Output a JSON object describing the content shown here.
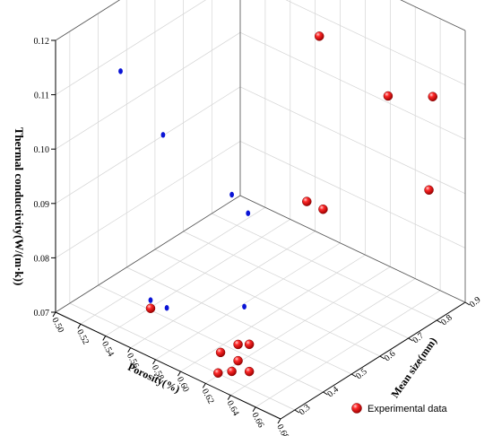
{
  "chart_data": {
    "type": "scatter",
    "projection": "3d",
    "xlabel": "Porosity(%)",
    "ylabel": "Mean size(mm)",
    "zlabel": "Thermal conductivity(W/(m·k))",
    "xlim": [
      0.5,
      0.68
    ],
    "ylim": [
      0.25,
      0.9
    ],
    "zlim": [
      0.07,
      0.12
    ],
    "x_ticks": [
      "0.50",
      "0.52",
      "0.54",
      "0.56",
      "0.58",
      "0.60",
      "0.62",
      "0.64",
      "0.66",
      "0.68"
    ],
    "y_ticks": [
      "0.3",
      "0.4",
      "0.5",
      "0.6",
      "0.7",
      "0.8",
      "0.9"
    ],
    "z_ticks": [
      "0.07",
      "0.08",
      "0.09",
      "0.10",
      "0.11",
      "0.12"
    ],
    "grid": true,
    "legend": {
      "position": "bottom-right",
      "entries": [
        "Experimental data"
      ]
    },
    "series": [
      {
        "name": "Experimental data",
        "color": "#e8000b",
        "points": [
          {
            "x": 0.552,
            "y": 0.8,
            "z": 0.12
          },
          {
            "x": 0.586,
            "y": 0.8,
            "z": 0.112
          },
          {
            "x": 0.641,
            "y": 0.8,
            "z": 0.107
          },
          {
            "x": 0.654,
            "y": 0.9,
            "z": 0.105
          },
          {
            "x": 0.651,
            "y": 0.9,
            "z": 0.0875
          },
          {
            "x": 0.576,
            "y": 0.8,
            "z": 0.0805
          },
          {
            "x": 0.589,
            "y": 0.8,
            "z": 0.0805
          },
          {
            "x": 0.576,
            "y": 0.25,
            "z": 0.079
          },
          {
            "x": 0.655,
            "y": 0.25,
            "z": 0.081
          },
          {
            "x": 0.646,
            "y": 0.25,
            "z": 0.08
          },
          {
            "x": 0.646,
            "y": 0.25,
            "z": 0.077
          },
          {
            "x": 0.632,
            "y": 0.25,
            "z": 0.077
          },
          {
            "x": 0.655,
            "y": 0.25,
            "z": 0.076
          },
          {
            "x": 0.641,
            "y": 0.25,
            "z": 0.0745
          },
          {
            "x": 0.63,
            "y": 0.25,
            "z": 0.073
          }
        ]
      }
    ],
    "projection_series": {
      "color": "#0a14d6",
      "points": [
        {
          "x": 0.552,
          "z": 0.12
        },
        {
          "x": 0.586,
          "z": 0.112
        },
        {
          "x": 0.641,
          "z": 0.107
        },
        {
          "x": 0.654,
          "z": 0.105
        },
        {
          "x": 0.651,
          "z": 0.0875
        },
        {
          "x": 0.576,
          "z": 0.0805
        },
        {
          "x": 0.589,
          "z": 0.0805
        },
        {
          "x": 0.576,
          "z": 0.079
        },
        {
          "x": 0.655,
          "z": 0.081
        },
        {
          "x": 0.646,
          "z": 0.08
        },
        {
          "x": 0.646,
          "z": 0.077
        },
        {
          "x": 0.632,
          "z": 0.077
        },
        {
          "x": 0.655,
          "z": 0.076
        },
        {
          "x": 0.641,
          "z": 0.0745
        },
        {
          "x": 0.63,
          "z": 0.073
        }
      ]
    }
  }
}
